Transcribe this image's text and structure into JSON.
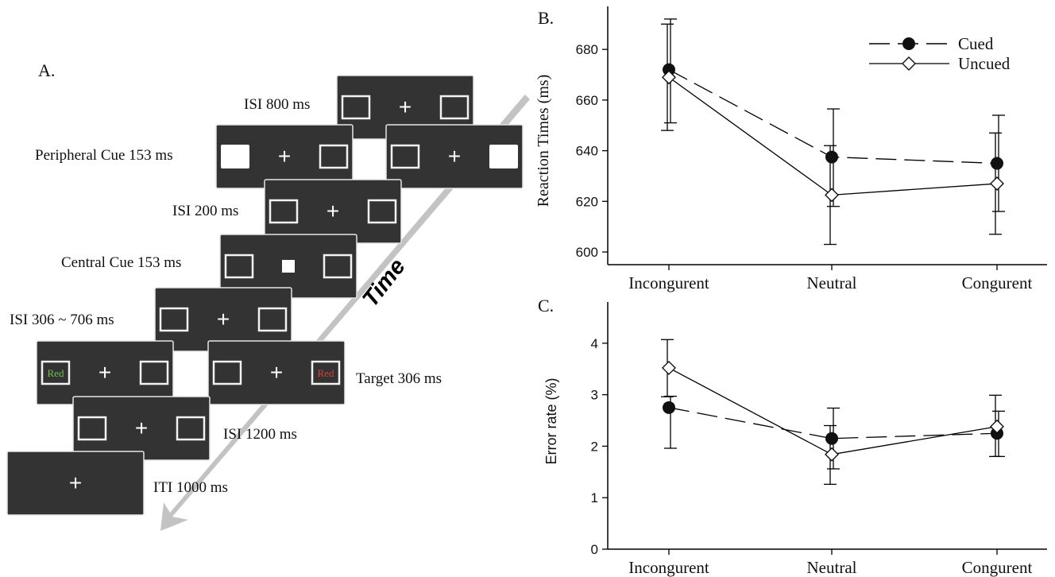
{
  "panel_a": {
    "panel_label": "A.",
    "time_label": "Time",
    "screens": [
      {
        "label": "ISI  800 ms",
        "left": "frame",
        "center": "+",
        "right": "frame"
      },
      {
        "label": "Peripheral Cue 153 ms",
        "left": "filled",
        "center": "+",
        "right": "frame"
      },
      {
        "label": "",
        "left": "frame",
        "center": "+",
        "right": "filled"
      },
      {
        "label": "ISI  200 ms",
        "left": "frame",
        "center": "+",
        "right": "frame"
      },
      {
        "label": "Central Cue 153 ms",
        "left": "frame",
        "center": "square",
        "right": "frame"
      },
      {
        "label": "ISI 306 ~ 706 ms",
        "left": "frame",
        "center": "+",
        "right": "frame"
      },
      {
        "label": "",
        "left": "word",
        "center": "+",
        "right": "frame"
      },
      {
        "label": "Target 306 ms",
        "left": "frame",
        "center": "+",
        "right": "word"
      },
      {
        "label": "ISI  1200 ms",
        "left": "frame",
        "center": "+",
        "right": "frame"
      },
      {
        "label": "ITI  1000 ms",
        "left": "none",
        "center": "+",
        "right": "none"
      }
    ],
    "stimulus_words": [
      {
        "text": "Red",
        "color": "#6fc04a"
      },
      {
        "text": "Red",
        "color": "#e03c3c"
      }
    ],
    "colors": {
      "screen": "#333333",
      "arrow": "#c3c3c3"
    }
  },
  "chart_data": [
    {
      "panel_label": "B.",
      "type": "line",
      "categories": [
        "Incongurent",
        "Neutral",
        "Congurent"
      ],
      "ylabel": "Reaction Times (ms)",
      "xlabel": "",
      "ylim": [
        595,
        697
      ],
      "yticks": [
        600,
        620,
        640,
        660,
        680
      ],
      "legend_position": "top-right",
      "series": [
        {
          "name": "Cued",
          "marker": "filled-circle",
          "line": "dashed",
          "values": [
            672,
            637.5,
            635
          ],
          "err_low": [
            651,
            618,
            616
          ],
          "err_high": [
            692,
            656.5,
            654
          ]
        },
        {
          "name": "Uncued",
          "marker": "open-diamond",
          "line": "solid",
          "values": [
            669,
            622.5,
            627
          ],
          "err_low": [
            648,
            603,
            607
          ],
          "err_high": [
            690,
            642,
            647
          ]
        }
      ]
    },
    {
      "panel_label": "C.",
      "type": "line",
      "categories": [
        "Incongurent",
        "Neutral",
        "Congurent"
      ],
      "ylabel": "Error rate (%)",
      "xlabel": "",
      "ylim": [
        0,
        4.8
      ],
      "yticks": [
        0,
        1,
        2,
        3,
        4
      ],
      "series": [
        {
          "name": "Cued",
          "marker": "filled-circle",
          "line": "dashed",
          "values": [
            2.75,
            2.15,
            2.25
          ],
          "err_low": [
            1.96,
            1.56,
            1.8
          ],
          "err_high": [
            2.97,
            2.74,
            2.68
          ]
        },
        {
          "name": "Uncued",
          "marker": "open-diamond",
          "line": "solid",
          "values": [
            3.52,
            1.84,
            2.38
          ],
          "err_low": [
            2.96,
            1.26,
            1.8
          ],
          "err_high": [
            4.07,
            2.4,
            2.99
          ]
        }
      ]
    }
  ]
}
